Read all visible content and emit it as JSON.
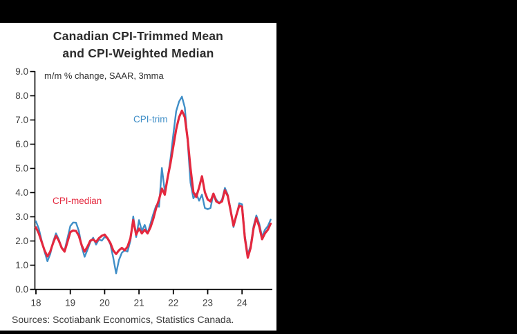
{
  "window": {
    "background": "#000000"
  },
  "panel": {
    "background": "#ffffff"
  },
  "header": {
    "title_line1": "Canadian CPI-Trimmed Mean",
    "title_line2": "and CPI-Weighted Median",
    "subtitle": "m/m % change, SAAR, 3mma"
  },
  "footer": {
    "source": "Sources: Scotiabank Economics, Statistics Canada."
  },
  "labels": {
    "trim": "CPI-trim",
    "median": "CPI-median"
  },
  "colors": {
    "trim_blue": "#3f8ec7",
    "median_red": "#e4283e",
    "axis": "#000000",
    "title_text": "#2b2b2b",
    "tick_text": "#3f3f3f"
  },
  "chart_data": {
    "type": "line",
    "title": "Canadian CPI-Trimmed Mean and CPI-Weighted Median",
    "subtitle": "m/m % change, SAAR, 3mma",
    "source": "Sources: Scotiabank Economics, Statistics Canada.",
    "x_unit": "monthly, Jan 2018 - Nov 2024",
    "x_tick_labels": [
      "18",
      "19",
      "20",
      "21",
      "22",
      "23",
      "24"
    ],
    "y_tick_labels": [
      "0.0",
      "1.0",
      "2.0",
      "3.0",
      "4.0",
      "5.0",
      "6.0",
      "7.0",
      "8.0",
      "9.0"
    ],
    "ylim": [
      0,
      9
    ],
    "grid": false,
    "legend_position": "inline-labels",
    "series": [
      {
        "name": "CPI-trim",
        "color": "#3f8ec7",
        "line_width": 2.4,
        "values": [
          2.8,
          2.5,
          2.0,
          1.55,
          1.15,
          1.45,
          1.95,
          2.3,
          2.05,
          1.7,
          1.6,
          2.1,
          2.6,
          2.75,
          2.74,
          2.4,
          1.75,
          1.33,
          1.62,
          1.95,
          2.12,
          1.84,
          2.05,
          2.0,
          2.15,
          2.1,
          1.85,
          1.3,
          0.65,
          1.2,
          1.5,
          1.6,
          1.55,
          2.0,
          3.0,
          2.15,
          2.85,
          2.4,
          2.65,
          2.3,
          2.7,
          3.1,
          3.45,
          3.4,
          5.0,
          4.05,
          4.55,
          5.4,
          6.4,
          7.35,
          7.75,
          7.95,
          7.5,
          6.1,
          4.4,
          3.75,
          3.95,
          3.65,
          3.9,
          3.35,
          3.3,
          3.35,
          3.95,
          3.7,
          3.55,
          3.7,
          4.18,
          3.9,
          3.3,
          2.56,
          3.0,
          3.55,
          3.5,
          2.2,
          1.42,
          1.8,
          2.6,
          3.04,
          2.7,
          2.16,
          2.45,
          2.6,
          2.87
        ]
      },
      {
        "name": "CPI-median",
        "color": "#e4283e",
        "line_width": 3.2,
        "values": [
          2.55,
          2.3,
          1.95,
          1.6,
          1.35,
          1.55,
          1.9,
          2.2,
          2.0,
          1.7,
          1.55,
          1.95,
          2.35,
          2.42,
          2.4,
          2.2,
          1.8,
          1.55,
          1.75,
          2.0,
          2.05,
          1.95,
          2.1,
          2.2,
          2.25,
          2.1,
          1.9,
          1.6,
          1.45,
          1.6,
          1.7,
          1.6,
          1.75,
          2.1,
          2.85,
          2.25,
          2.5,
          2.3,
          2.45,
          2.3,
          2.55,
          2.9,
          3.35,
          3.7,
          4.15,
          3.9,
          4.6,
          5.2,
          5.9,
          6.6,
          7.1,
          7.37,
          7.1,
          6.2,
          5.0,
          4.0,
          3.8,
          4.2,
          4.66,
          4.0,
          3.7,
          3.62,
          3.94,
          3.62,
          3.55,
          3.62,
          4.08,
          3.85,
          3.25,
          2.62,
          3.05,
          3.45,
          3.4,
          2.1,
          1.3,
          1.7,
          2.5,
          2.94,
          2.58,
          2.06,
          2.3,
          2.45,
          2.7
        ]
      }
    ]
  }
}
